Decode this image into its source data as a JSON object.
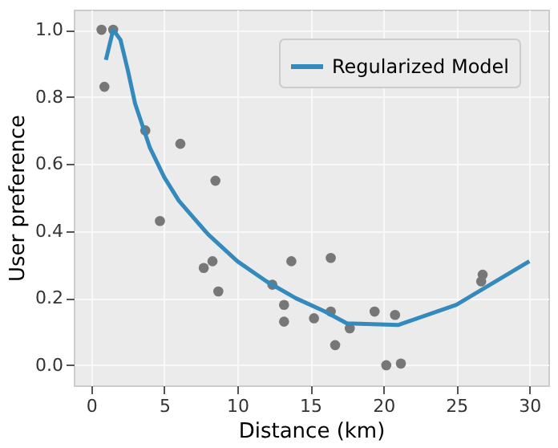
{
  "chart_data": {
    "type": "scatter",
    "xlabel": "Distance (km)",
    "ylabel": "User preference",
    "xlim": [
      -1.2,
      31.3
    ],
    "ylim": [
      -0.06,
      1.06
    ],
    "xticks": [
      0,
      5,
      10,
      15,
      20,
      25,
      30
    ],
    "yticks": [
      {
        "value": 0,
        "label": "0.0"
      },
      0.2,
      0.4,
      0.6,
      0.8,
      {
        "value": 1,
        "label": "1.0"
      }
    ],
    "grid": true,
    "legend": "top right",
    "series": [
      {
        "color": "#777777",
        "marker": "circle",
        "x": [
          0.7,
          1.5,
          0.9,
          3.7,
          6.1,
          4.7,
          8.5,
          7.7,
          8.3,
          8.7,
          12.4,
          13.2,
          13.2,
          13.7,
          15.25,
          16.4,
          16.4,
          16.7,
          17.7,
          19.4,
          20.8,
          20.2,
          21.2,
          26.8,
          26.7
        ],
        "values": [
          1.0,
          1.0,
          0.83,
          0.7,
          0.66,
          0.43,
          0.55,
          0.29,
          0.31,
          0.22,
          0.24,
          0.18,
          0.13,
          0.31,
          0.14,
          0.32,
          0.16,
          0.06,
          0.11,
          0.16,
          0.15,
          0.0,
          0.005,
          0.27,
          0.25
        ]
      },
      {
        "type": "line",
        "name": "Regularized Model",
        "color": "#348abd",
        "line_style": "solid",
        "x": [
          1,
          1.5,
          2,
          2.5,
          3,
          4,
          5,
          6,
          7,
          8,
          9,
          10,
          12,
          14,
          16,
          17.5,
          21,
          25,
          30
        ],
        "values": [
          0.91,
          1.0,
          0.97,
          0.88,
          0.78,
          0.65,
          0.56,
          0.49,
          0.44,
          0.39,
          0.35,
          0.31,
          0.25,
          0.2,
          0.16,
          0.125,
          0.12,
          0.18,
          0.31
        ]
      }
    ]
  }
}
